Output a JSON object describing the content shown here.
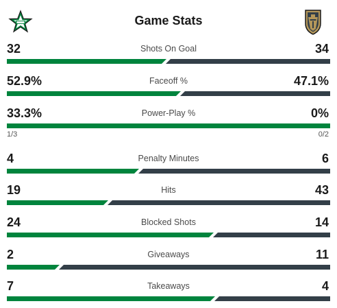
{
  "title": "Game Stats",
  "teams": {
    "home": {
      "logo_icon": "dallas-stars-star-logo",
      "color": "#00843d"
    },
    "away": {
      "logo_icon": "vegas-golden-knights-helmet-logo",
      "color": "#333f48"
    }
  },
  "stats": [
    {
      "label": "Shots On Goal",
      "left": "32",
      "right": "34",
      "left_share": 0.485
    },
    {
      "label": "Faceoff %",
      "left": "52.9%",
      "right": "47.1%",
      "left_share": 0.529
    },
    {
      "label": "Power-Play %",
      "left": "33.3%",
      "right": "0%",
      "left_share": 1.0,
      "left_sub": "1/3",
      "right_sub": "0/2"
    },
    {
      "label": "Penalty Minutes",
      "left": "4",
      "right": "6",
      "left_share": 0.4
    },
    {
      "label": "Hits",
      "left": "19",
      "right": "43",
      "left_share": 0.306
    },
    {
      "label": "Blocked Shots",
      "left": "24",
      "right": "14",
      "left_share": 0.632
    },
    {
      "label": "Giveaways",
      "left": "2",
      "right": "11",
      "left_share": 0.154
    },
    {
      "label": "Takeaways",
      "left": "7",
      "right": "4",
      "left_share": 0.636
    }
  ]
}
